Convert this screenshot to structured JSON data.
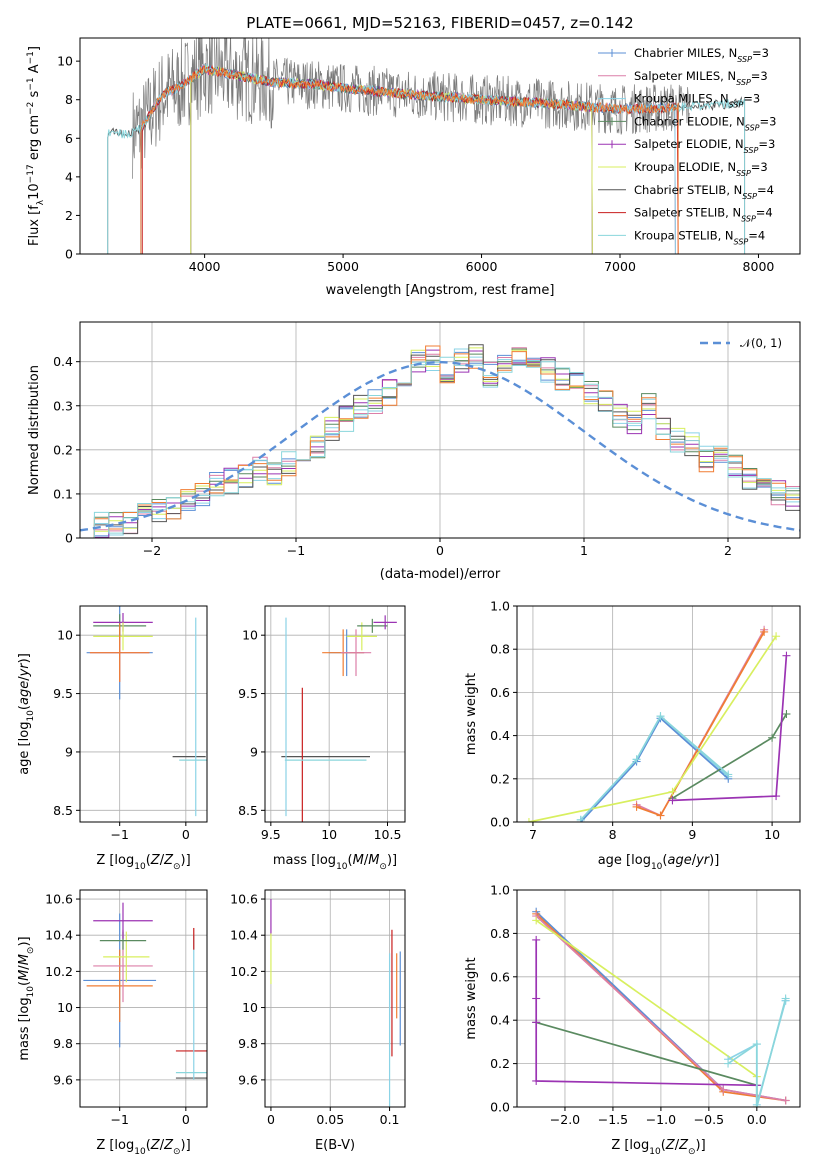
{
  "figure": {
    "title": "PLATE=0661, MJD=52163, FIBERID=0457, z=0.142"
  },
  "colors": {
    "chabrier_miles": "#5b8fd6",
    "salpeter_miles": "#dc7fa8",
    "kroupa_miles": "#8bd3e6",
    "chabrier_elodie": "#5a8a60",
    "salpeter_elodie": "#9b33b3",
    "kroupa_elodie": "#d8ef5f",
    "chabrier_stelib": "#555555",
    "salpeter_stelib": "#c81e1e",
    "kroupa_stelib": "#8ad6dc",
    "orange": "#f07d33",
    "grid": "#b0b0b0",
    "normal_curve": "#5b8fd6"
  },
  "chart_data": [
    {
      "id": "spectrum",
      "type": "line",
      "title": "PLATE=0661, MJD=52163, FIBERID=0457, z=0.142",
      "xlabel": "wavelength [Angstrom, rest frame]",
      "ylabel": "Flux [f_λ 10^-17 erg cm^-2 s^-1 A^-1]",
      "xlim": [
        3100,
        8300
      ],
      "ylim": [
        0,
        11.2
      ],
      "xticks": [
        4000,
        5000,
        6000,
        7000,
        8000
      ],
      "yticks": [
        0,
        2,
        4,
        6,
        8,
        10
      ],
      "grid": false,
      "legend_position": "top-right",
      "legend": [
        "Chabrier MILES, N_SSP=3",
        "Salpeter MILES, N_SSP=3",
        "Kroupa MILES, N_SSP=3",
        "Chabrier ELODIE, N_SSP=3",
        "Salpeter ELODIE, N_SSP=3",
        "Kroupa ELODIE, N_SSP=3",
        "Chabrier STELIB, N_SSP=4",
        "Salpeter STELIB, N_SSP=4",
        "Kroupa STELIB, N_SSP=4"
      ],
      "model_continuum": {
        "x": [
          3300,
          3450,
          3550,
          3700,
          3800,
          3900,
          4000,
          4200,
          4500,
          4800,
          5000,
          5300,
          5600,
          6000,
          6500,
          7000,
          7400,
          7600,
          7800,
          7900
        ],
        "y": [
          6.3,
          6.2,
          6.6,
          8.3,
          8.6,
          9.1,
          9.6,
          9.3,
          8.9,
          8.8,
          8.6,
          8.4,
          8.2,
          8.0,
          7.8,
          7.5,
          7.6,
          7.7,
          7.8,
          7.9
        ]
      },
      "data_noise_level": 1.1
    },
    {
      "id": "residual_histogram",
      "type": "bar",
      "xlabel": "(data-model)/error",
      "ylabel": "Normed distribution",
      "xlim": [
        -2.5,
        2.5
      ],
      "ylim": [
        0,
        0.49
      ],
      "xticks": [
        -2,
        -1,
        0,
        1,
        2
      ],
      "yticks": [
        0.0,
        0.1,
        0.2,
        0.3,
        0.4
      ],
      "grid": true,
      "legend_position": "top-right",
      "legend": [
        "𝒩(0, 1)"
      ],
      "bin_width": 0.1,
      "bins_start": -2.5,
      "base_values": [
        0.02,
        0.03,
        0.03,
        0.04,
        0.05,
        0.06,
        0.07,
        0.09,
        0.1,
        0.12,
        0.13,
        0.14,
        0.16,
        0.15,
        0.17,
        0.18,
        0.21,
        0.25,
        0.27,
        0.3,
        0.31,
        0.33,
        0.36,
        0.4,
        0.41,
        0.38,
        0.4,
        0.41,
        0.37,
        0.4,
        0.42,
        0.4,
        0.38,
        0.36,
        0.35,
        0.33,
        0.31,
        0.28,
        0.26,
        0.3,
        0.25,
        0.22,
        0.21,
        0.18,
        0.19,
        0.16,
        0.14,
        0.12,
        0.1,
        0.09
      ],
      "series": [
        {
          "name": "Chabrier MILES"
        },
        {
          "name": "Salpeter MILES"
        },
        {
          "name": "Kroupa MILES"
        },
        {
          "name": "Chabrier ELODIE"
        },
        {
          "name": "Salpeter ELODIE"
        },
        {
          "name": "Kroupa ELODIE"
        },
        {
          "name": "Chabrier STELIB"
        },
        {
          "name": "Salpeter STELIB"
        },
        {
          "name": "Kroupa STELIB"
        }
      ],
      "normal_curve": {
        "mu": 0,
        "sigma": 1
      }
    },
    {
      "id": "age_vs_Z",
      "type": "scatter",
      "xlabel": "Z [log10(Z/Z⊙)]",
      "ylabel": "age  [log10(age/yr)]",
      "xlim": [
        -1.6,
        0.32
      ],
      "ylim": [
        8.4,
        10.25
      ],
      "xticks": [
        -1,
        0
      ],
      "yticks": [
        8.5,
        9.0,
        9.5,
        10.0
      ],
      "grid": true,
      "errorbars": [
        {
          "color": "chabrier_miles",
          "x": -1.0,
          "y": 9.85,
          "xerr": 0.5,
          "yerr": 0.4
        },
        {
          "color": "salpeter_miles",
          "x": -1.0,
          "y": 9.85,
          "xerr": 0.45,
          "yerr": 0.25
        },
        {
          "color": "chabrier_elodie",
          "x": -1.0,
          "y": 10.08,
          "xerr": 0.4,
          "yerr": 0.1
        },
        {
          "color": "salpeter_elodie",
          "x": -0.95,
          "y": 10.11,
          "xerr": 0.45,
          "yerr": 0.08
        },
        {
          "color": "kroupa_elodie",
          "x": -0.95,
          "y": 9.99,
          "xerr": 0.45,
          "yerr": 0.12
        },
        {
          "color": "orange",
          "x": -1.0,
          "y": 9.85,
          "xerr": 0.45,
          "yerr": 0.25
        },
        {
          "color": "chabrier_stelib",
          "x": 0.05,
          "y": 8.96,
          "xerr": 0.25,
          "yerr": 0.0
        },
        {
          "color": "kroupa_stelib",
          "x": 0.15,
          "y": 8.93,
          "xerr": 0.25,
          "yerr": 0.0
        },
        {
          "color": "kroupa_miles",
          "x": 0.15,
          "y": 9.3,
          "xerr": 0.0,
          "yerr": 0.85
        }
      ]
    },
    {
      "id": "age_vs_mass",
      "type": "scatter",
      "xlabel": "mass [log10(M/M⊙)]",
      "ylabel": "",
      "xlim": [
        9.45,
        10.65
      ],
      "ylim": [
        8.4,
        10.25
      ],
      "xticks": [
        9.5,
        10.0,
        10.5
      ],
      "yticks": [
        8.5,
        9.0,
        9.5,
        10.0
      ],
      "grid": true,
      "errorbars": [
        {
          "color": "chabrier_stelib",
          "x": 9.97,
          "y": 8.96,
          "xerr": 0.38,
          "yerr": 0.0
        },
        {
          "color": "salpeter_stelib",
          "x": 9.77,
          "y": 8.95,
          "xerr": 0.0,
          "yerr": 0.6
        },
        {
          "color": "kroupa_stelib",
          "x": 9.97,
          "y": 8.93,
          "xerr": 0.35,
          "yerr": 0.0
        },
        {
          "color": "kroupa_miles",
          "x": 9.63,
          "y": 9.3,
          "xerr": 0.0,
          "yerr": 0.85
        },
        {
          "color": "chabrier_miles",
          "x": 10.15,
          "y": 9.85,
          "xerr": 0.15,
          "yerr": 0.2
        },
        {
          "color": "orange",
          "x": 10.12,
          "y": 9.85,
          "xerr": 0.18,
          "yerr": 0.2
        },
        {
          "color": "salpeter_miles",
          "x": 10.23,
          "y": 9.85,
          "xerr": 0.13,
          "yerr": 0.2
        },
        {
          "color": "kroupa_elodie",
          "x": 10.28,
          "y": 9.99,
          "xerr": 0.13,
          "yerr": 0.12
        },
        {
          "color": "chabrier_elodie",
          "x": 10.37,
          "y": 10.08,
          "xerr": 0.13,
          "yerr": 0.06
        },
        {
          "color": "salpeter_elodie",
          "x": 10.48,
          "y": 10.11,
          "xerr": 0.1,
          "yerr": 0.06
        }
      ]
    },
    {
      "id": "weight_vs_age",
      "type": "line",
      "xlabel": "age  [log10(age/yr)]",
      "ylabel": "mass weight",
      "xlim": [
        6.8,
        10.35
      ],
      "ylim": [
        0,
        1.0
      ],
      "xticks": [
        7,
        8,
        9,
        10
      ],
      "yticks": [
        0.0,
        0.2,
        0.4,
        0.6,
        0.8,
        1.0
      ],
      "grid": true,
      "series": [
        {
          "color": "kroupa_miles",
          "x": [
            7.6,
            8.3,
            8.6,
            9.45
          ],
          "y": [
            0.01,
            0.29,
            0.49,
            0.21
          ]
        },
        {
          "color": "chabrier_miles",
          "x": [
            7.6,
            8.3,
            8.6,
            9.45
          ],
          "y": [
            0.0,
            0.28,
            0.48,
            0.2
          ]
        },
        {
          "color": "salpeter_miles",
          "x": [
            8.3,
            8.6,
            9.9
          ],
          "y": [
            0.08,
            0.03,
            0.89
          ]
        },
        {
          "color": "orange",
          "x": [
            8.3,
            8.6,
            9.9
          ],
          "y": [
            0.07,
            0.03,
            0.88
          ]
        },
        {
          "color": "chabrier_elodie",
          "x": [
            8.75,
            10.0,
            10.18
          ],
          "y": [
            0.11,
            0.39,
            0.5
          ]
        },
        {
          "color": "salpeter_elodie",
          "x": [
            8.75,
            10.05,
            10.18
          ],
          "y": [
            0.1,
            0.12,
            0.77
          ]
        },
        {
          "color": "kroupa_elodie",
          "x": [
            6.95,
            8.75,
            10.05
          ],
          "y": [
            0.0,
            0.14,
            0.86
          ]
        },
        {
          "color": "kroupa_stelib",
          "x": [
            7.6,
            8.3,
            8.6,
            9.45
          ],
          "y": [
            0.01,
            0.29,
            0.49,
            0.22
          ]
        }
      ]
    },
    {
      "id": "mass_vs_Z",
      "type": "scatter",
      "xlabel": "Z [log10(Z/Z⊙)]",
      "ylabel": "mass [log10(M/M⊙)]",
      "xlim": [
        -1.6,
        0.32
      ],
      "ylim": [
        9.45,
        10.65
      ],
      "xticks": [
        -1,
        0
      ],
      "yticks": [
        9.6,
        9.8,
        10.0,
        10.2,
        10.4,
        10.6
      ],
      "grid": true,
      "errorbars": [
        {
          "color": "chabrier_miles",
          "x": -1.0,
          "y": 10.15,
          "xerr": 0.55,
          "yerr": 0.37
        },
        {
          "color": "orange",
          "x": -1.0,
          "y": 10.12,
          "xerr": 0.5,
          "yerr": 0.2
        },
        {
          "color": "salpeter_miles",
          "x": -0.95,
          "y": 10.23,
          "xerr": 0.45,
          "yerr": 0.2
        },
        {
          "color": "kroupa_elodie",
          "x": -0.9,
          "y": 10.28,
          "xerr": 0.35,
          "yerr": 0.14
        },
        {
          "color": "chabrier_elodie",
          "x": -0.95,
          "y": 10.37,
          "xerr": 0.35,
          "yerr": 0.05
        },
        {
          "color": "salpeter_elodie",
          "x": -0.95,
          "y": 10.48,
          "xerr": 0.45,
          "yerr": 0.1
        },
        {
          "color": "salpeter_stelib",
          "x": 0.1,
          "y": 9.76,
          "xerr": 0.25,
          "yerr": 0.0
        },
        {
          "color": "kroupa_stelib",
          "x": 0.1,
          "y": 9.64,
          "xerr": 0.25,
          "yerr": 0.0
        },
        {
          "color": "chabrier_stelib",
          "x": 0.1,
          "y": 9.61,
          "xerr": 0.25,
          "yerr": 0.0
        },
        {
          "color": "kroupa_miles",
          "x": 0.12,
          "y": 10.0,
          "xerr": 0.0,
          "yerr": 0.4
        },
        {
          "color": "salpeter_stelib",
          "x": 0.12,
          "y": 10.38,
          "xerr": 0.0,
          "yerr": 0.06
        }
      ]
    },
    {
      "id": "mass_vs_ebv",
      "type": "scatter",
      "xlabel": "E(B-V)",
      "ylabel": "",
      "xlim": [
        -0.005,
        0.113
      ],
      "ylim": [
        9.45,
        10.65
      ],
      "xticks": [
        0.0,
        0.05,
        0.1
      ],
      "yticks": [
        9.6,
        9.8,
        10.0,
        10.2,
        10.4,
        10.6
      ],
      "grid": true,
      "errorbars": [
        {
          "color": "salpeter_elodie",
          "x": 0.0,
          "y": 10.5,
          "xerr": 0.0,
          "yerr": 0.1
        },
        {
          "color": "kroupa_elodie",
          "x": 0.0,
          "y": 10.27,
          "xerr": 0.0,
          "yerr": 0.14
        },
        {
          "color": "kroupa_miles",
          "x": 0.1,
          "y": 9.85,
          "xerr": 0.0,
          "yerr": 0.45
        },
        {
          "color": "salpeter_stelib",
          "x": 0.102,
          "y": 10.08,
          "xerr": 0.0,
          "yerr": 0.35
        },
        {
          "color": "orange",
          "x": 0.106,
          "y": 10.12,
          "xerr": 0.0,
          "yerr": 0.18
        },
        {
          "color": "chabrier_miles",
          "x": 0.109,
          "y": 10.05,
          "xerr": 0.0,
          "yerr": 0.26
        }
      ]
    },
    {
      "id": "weight_vs_Z",
      "type": "line",
      "xlabel": "Z [log10(Z/Z⊙)]",
      "ylabel": "mass weight",
      "xlim": [
        -2.5,
        0.45
      ],
      "ylim": [
        0,
        1.0
      ],
      "xticks": [
        -2.0,
        -1.5,
        -1.0,
        -0.5,
        0.0
      ],
      "yticks": [
        0.0,
        0.2,
        0.4,
        0.6,
        0.8,
        1.0
      ],
      "grid": true,
      "series": [
        {
          "color": "chabrier_miles",
          "x": [
            -2.3,
            -0.35,
            0.3
          ],
          "y": [
            0.9,
            0.08,
            0.03
          ]
        },
        {
          "color": "orange",
          "x": [
            -2.3,
            -0.35,
            0.3
          ],
          "y": [
            0.89,
            0.07,
            0.03
          ]
        },
        {
          "color": "salpeter_miles",
          "x": [
            -2.3,
            -0.35,
            0.3
          ],
          "y": [
            0.88,
            0.08,
            0.03
          ]
        },
        {
          "color": "kroupa_elodie",
          "x": [
            -2.3,
            0.0,
            0.0
          ],
          "y": [
            0.86,
            0.14,
            0.0
          ]
        },
        {
          "color": "chabrier_elodie",
          "x": [
            -2.3,
            0.0,
            0.0
          ],
          "y": [
            0.39,
            0.1,
            0.0
          ]
        },
        {
          "color": "salpeter_elodie",
          "x": [
            -2.3,
            -2.3,
            -2.3,
            -2.3,
            0.0
          ],
          "y": [
            0.77,
            0.5,
            0.39,
            0.12,
            0.1
          ]
        },
        {
          "color": "kroupa_miles",
          "x": [
            -0.3,
            0.0,
            0.0,
            0.3,
            0.3
          ],
          "y": [
            0.22,
            0.29,
            0.01,
            0.49,
            0.49
          ]
        },
        {
          "color": "kroupa_stelib",
          "x": [
            -0.3,
            0.0,
            0.0,
            0.3
          ],
          "y": [
            0.2,
            0.29,
            0.0,
            0.5
          ]
        }
      ]
    }
  ]
}
